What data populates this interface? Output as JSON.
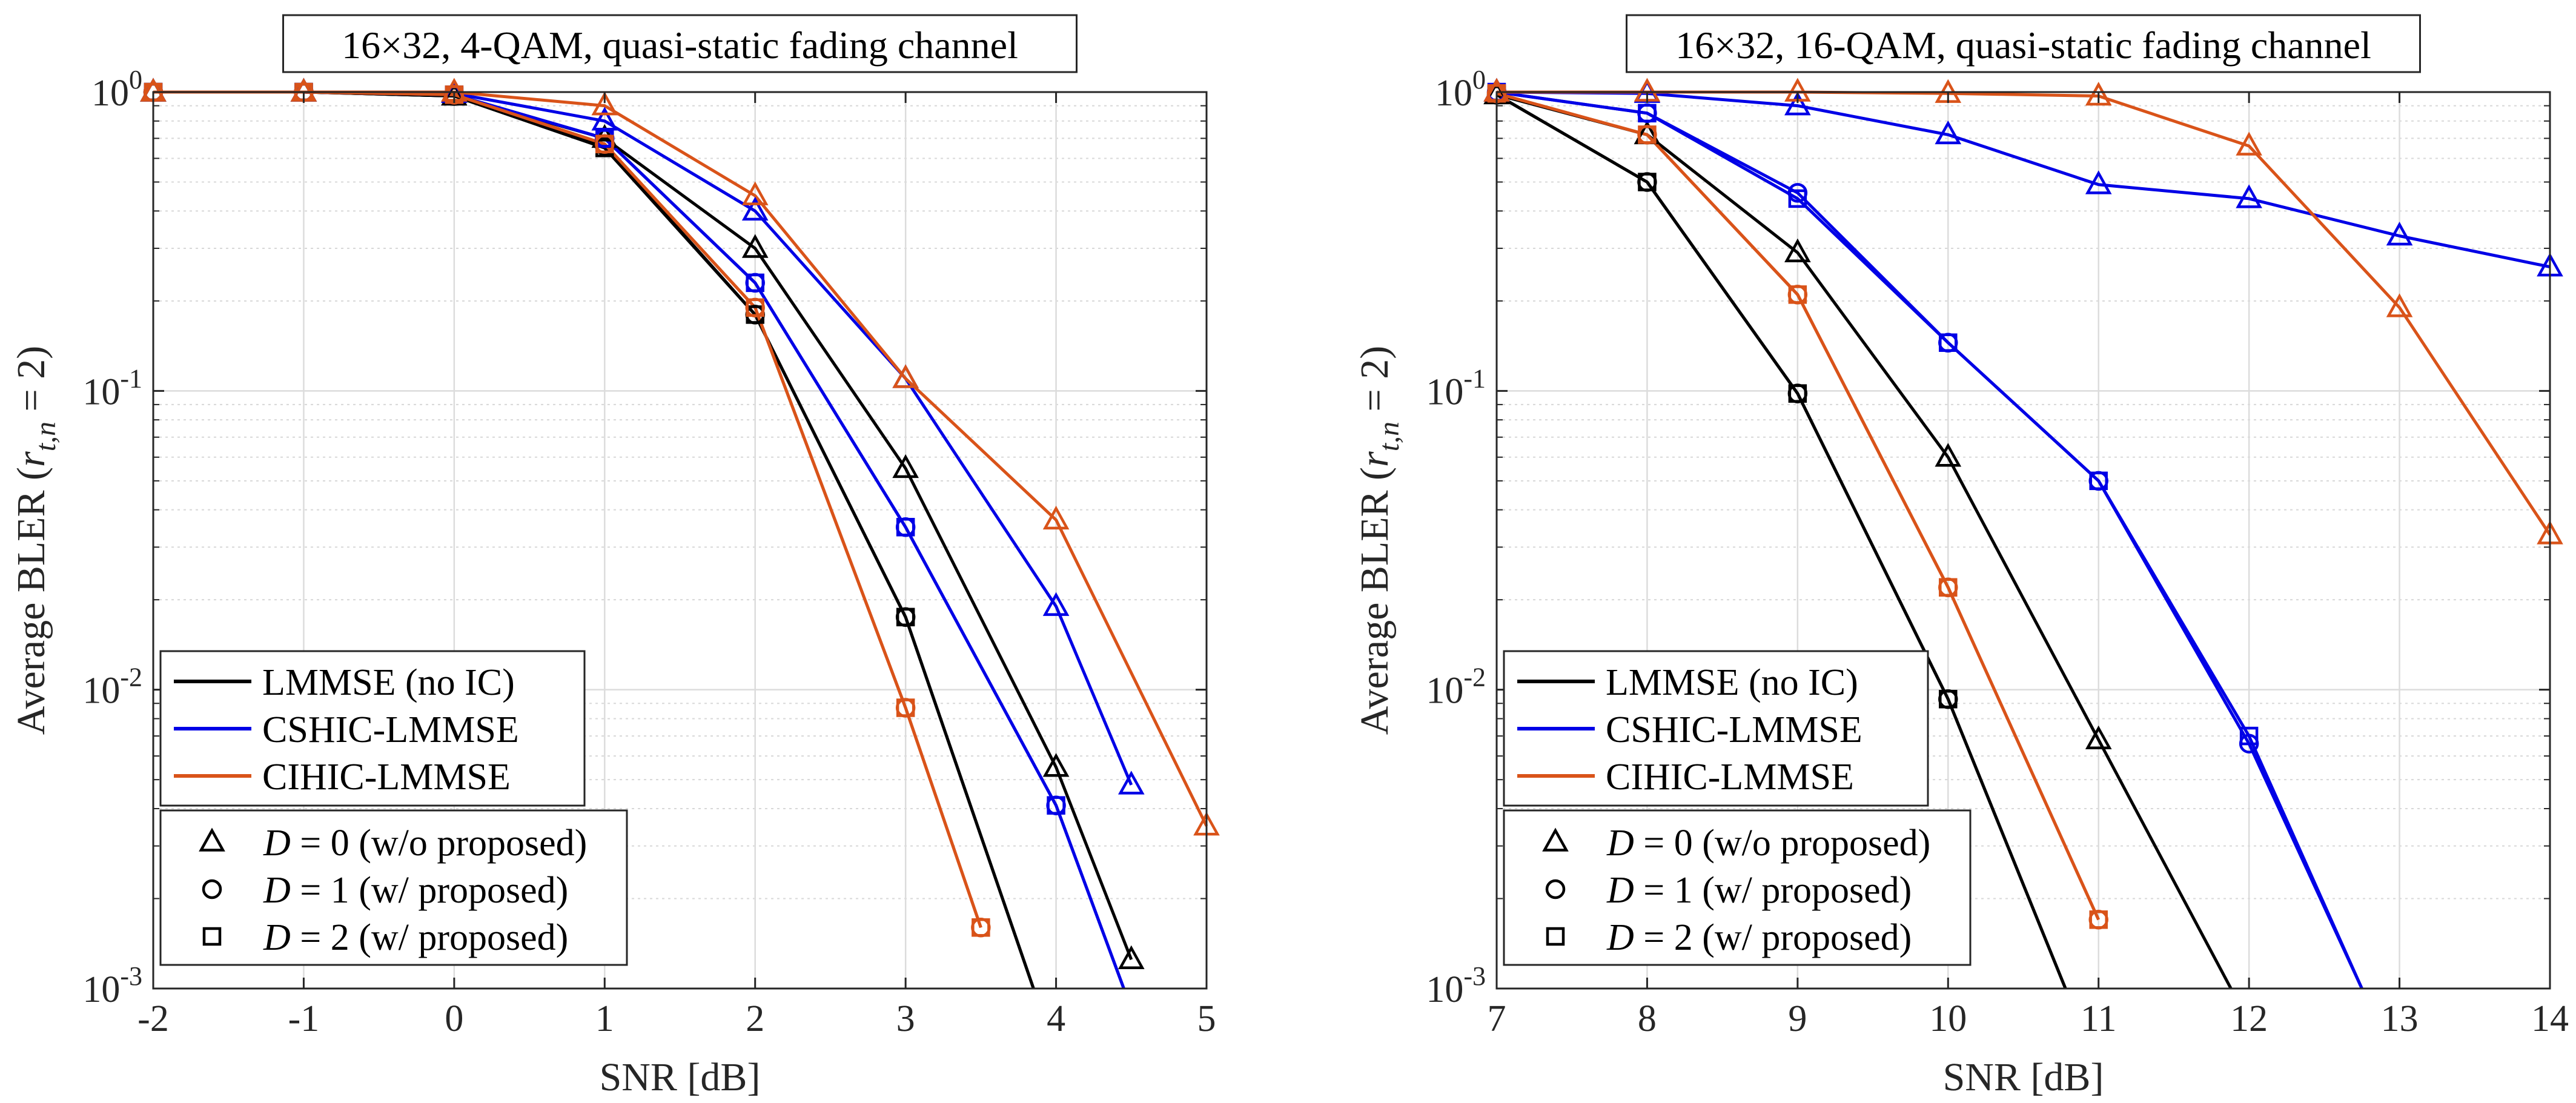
{
  "chart_data": [
    {
      "type": "line",
      "yscale": "log",
      "title": "16×32, 4-QAM, quasi-static fading channel",
      "xlabel": "SNR [dB]",
      "ylabel_main": "Average BLER (",
      "ylabel_var": "r",
      "ylabel_sub": "t,n",
      "ylabel_tail": " = 2)",
      "xlim": [
        -2,
        5
      ],
      "ylim": [
        0.001,
        1
      ],
      "xticks": [
        -2,
        -1,
        0,
        1,
        2,
        3,
        4,
        5
      ],
      "xtick_labels": [
        "-2",
        "-1",
        "0",
        "1",
        "2",
        "3",
        "4",
        "5"
      ],
      "yticks": [
        0.001,
        0.01,
        0.1,
        1
      ],
      "ytick_bases": [
        "10",
        "10",
        "10",
        "10"
      ],
      "ytick_exps": [
        "-3",
        "-2",
        "-1",
        "0"
      ],
      "grid": true,
      "legend_placement": "bottom-left",
      "series": [
        {
          "name": "LMMSE (no IC)",
          "color": "#000000",
          "marker": "triangle",
          "D": 0,
          "x": [
            -2,
            -1,
            0,
            1,
            2,
            3,
            4,
            4.5
          ],
          "y": [
            1.0,
            1.0,
            0.97,
            0.7,
            0.3,
            0.055,
            0.0055,
            0.00125
          ]
        },
        {
          "name": "LMMSE (no IC)",
          "color": "#000000",
          "marker": "circle",
          "D": 1,
          "x": [
            -2,
            -1,
            0,
            1,
            2,
            3,
            3.85
          ],
          "y": [
            1.0,
            1.0,
            0.97,
            0.66,
            0.18,
            0.0175,
            0.001
          ]
        },
        {
          "name": "LMMSE (no IC)",
          "color": "#000000",
          "marker": "square",
          "D": 2,
          "x": [
            -2,
            -1,
            0,
            1,
            2,
            3,
            3.85
          ],
          "y": [
            1.0,
            1.0,
            0.97,
            0.65,
            0.18,
            0.0175,
            0.001
          ]
        },
        {
          "name": "CSHIC-LMMSE",
          "color": "#0000e6",
          "marker": "triangle",
          "D": 0,
          "x": [
            -2,
            -1,
            0,
            1,
            2,
            3,
            4,
            4.5
          ],
          "y": [
            1.0,
            1.0,
            0.99,
            0.8,
            0.4,
            0.11,
            0.019,
            0.0048
          ]
        },
        {
          "name": "CSHIC-LMMSE",
          "color": "#0000e6",
          "marker": "circle",
          "D": 1,
          "x": [
            -2,
            -1,
            0,
            1,
            2,
            3,
            4,
            4.45
          ],
          "y": [
            1.0,
            1.0,
            0.98,
            0.7,
            0.23,
            0.035,
            0.0041,
            0.001
          ]
        },
        {
          "name": "CSHIC-LMMSE",
          "color": "#0000e6",
          "marker": "square",
          "D": 2,
          "x": [
            -2,
            -1,
            0,
            1,
            2,
            3,
            4,
            4.45
          ],
          "y": [
            1.0,
            1.0,
            0.98,
            0.7,
            0.23,
            0.035,
            0.0041,
            0.001
          ]
        },
        {
          "name": "CIHIC-LMMSE",
          "color": "#d95319",
          "marker": "triangle",
          "D": 0,
          "x": [
            -2,
            -1,
            0,
            1,
            2,
            3,
            4,
            5
          ],
          "y": [
            1.0,
            1.0,
            1.0,
            0.9,
            0.45,
            0.11,
            0.037,
            0.0035
          ]
        },
        {
          "name": "CIHIC-LMMSE",
          "color": "#d95319",
          "marker": "circle",
          "D": 1,
          "x": [
            -2,
            -1,
            0,
            1,
            2,
            3,
            3.5
          ],
          "y": [
            1.0,
            1.0,
            0.98,
            0.67,
            0.19,
            0.0087,
            0.0016
          ]
        },
        {
          "name": "CIHIC-LMMSE",
          "color": "#d95319",
          "marker": "square",
          "D": 2,
          "x": [
            -2,
            -1,
            0,
            1,
            2,
            3,
            3.5
          ],
          "y": [
            1.0,
            1.0,
            0.98,
            0.67,
            0.19,
            0.0087,
            0.0016
          ]
        }
      ],
      "legend_lines": [
        {
          "label": "LMMSE (no IC)",
          "color": "#000000"
        },
        {
          "label": "CSHIC-LMMSE",
          "color": "#0000e6"
        },
        {
          "label": "CIHIC-LMMSE",
          "color": "#d95319"
        }
      ],
      "legend_markers": [
        {
          "marker": "triangle",
          "var": "D",
          "text": " = 0 (w/o proposed)"
        },
        {
          "marker": "circle",
          "var": "D",
          "text": " = 1 (w/ proposed)"
        },
        {
          "marker": "square",
          "var": "D",
          "text": " = 2 (w/ proposed)"
        }
      ]
    },
    {
      "type": "line",
      "yscale": "log",
      "title": "16×32, 16-QAM, quasi-static fading channel",
      "xlabel": "SNR [dB]",
      "ylabel_main": "Average BLER (",
      "ylabel_var": "r",
      "ylabel_sub": "t,n",
      "ylabel_tail": " = 2)",
      "xlim": [
        7,
        14
      ],
      "ylim": [
        0.001,
        1
      ],
      "xticks": [
        7,
        8,
        9,
        10,
        11,
        12,
        13,
        14
      ],
      "xtick_labels": [
        "7",
        "8",
        "9",
        "10",
        "11",
        "12",
        "13",
        "14"
      ],
      "yticks": [
        0.001,
        0.01,
        0.1,
        1
      ],
      "ytick_bases": [
        "10",
        "10",
        "10",
        "10"
      ],
      "ytick_exps": [
        "-3",
        "-2",
        "-1",
        "0"
      ],
      "grid": true,
      "legend_placement": "bottom-left",
      "series": [
        {
          "name": "LMMSE (no IC)",
          "color": "#000000",
          "marker": "triangle",
          "D": 0,
          "x": [
            7,
            8,
            9,
            10,
            11,
            11.88
          ],
          "y": [
            0.98,
            0.72,
            0.29,
            0.06,
            0.0068,
            0.001
          ]
        },
        {
          "name": "LMMSE (no IC)",
          "color": "#000000",
          "marker": "circle",
          "D": 1,
          "x": [
            7,
            8,
            9,
            10,
            10.78
          ],
          "y": [
            0.98,
            0.5,
            0.098,
            0.0093,
            0.001
          ]
        },
        {
          "name": "LMMSE (no IC)",
          "color": "#000000",
          "marker": "square",
          "D": 2,
          "x": [
            7,
            8,
            9,
            10,
            10.78
          ],
          "y": [
            0.98,
            0.5,
            0.098,
            0.0093,
            0.001
          ]
        },
        {
          "name": "CSHIC-LMMSE",
          "color": "#0000e6",
          "marker": "triangle",
          "D": 0,
          "x": [
            7,
            8,
            9,
            10,
            11,
            12,
            13,
            14
          ],
          "y": [
            1.0,
            0.99,
            0.9,
            0.72,
            0.49,
            0.44,
            0.33,
            0.26
          ]
        },
        {
          "name": "CSHIC-LMMSE",
          "color": "#0000e6",
          "marker": "circle",
          "D": 1,
          "x": [
            7,
            8,
            9,
            10,
            11,
            12,
            12.75
          ],
          "y": [
            1.0,
            0.85,
            0.46,
            0.145,
            0.05,
            0.0066,
            0.001
          ]
        },
        {
          "name": "CSHIC-LMMSE",
          "color": "#0000e6",
          "marker": "square",
          "D": 2,
          "x": [
            7,
            8,
            9,
            10,
            11,
            12,
            12.75
          ],
          "y": [
            1.0,
            0.85,
            0.44,
            0.145,
            0.05,
            0.007,
            0.001
          ]
        },
        {
          "name": "CIHIC-LMMSE",
          "color": "#d95319",
          "marker": "triangle",
          "D": 0,
          "x": [
            7,
            8,
            9,
            10,
            11,
            12,
            13,
            14
          ],
          "y": [
            1.0,
            1.0,
            1.0,
            0.99,
            0.97,
            0.66,
            0.19,
            0.033
          ]
        },
        {
          "name": "CIHIC-LMMSE",
          "color": "#d95319",
          "marker": "circle",
          "D": 1,
          "x": [
            7,
            8,
            9,
            10,
            11
          ],
          "y": [
            0.99,
            0.72,
            0.21,
            0.022,
            0.0017
          ]
        },
        {
          "name": "CIHIC-LMMSE",
          "color": "#d95319",
          "marker": "square",
          "D": 2,
          "x": [
            7,
            8,
            9,
            10,
            11
          ],
          "y": [
            0.99,
            0.72,
            0.21,
            0.022,
            0.0017
          ]
        }
      ],
      "legend_lines": [
        {
          "label": "LMMSE (no IC)",
          "color": "#000000"
        },
        {
          "label": "CSHIC-LMMSE",
          "color": "#0000e6"
        },
        {
          "label": "CIHIC-LMMSE",
          "color": "#d95319"
        }
      ],
      "legend_markers": [
        {
          "marker": "triangle",
          "var": "D",
          "text": " = 0 (w/o proposed)"
        },
        {
          "marker": "circle",
          "var": "D",
          "text": " = 1 (w/ proposed)"
        },
        {
          "marker": "square",
          "var": "D",
          "text": " = 2 (w/ proposed)"
        }
      ]
    }
  ]
}
